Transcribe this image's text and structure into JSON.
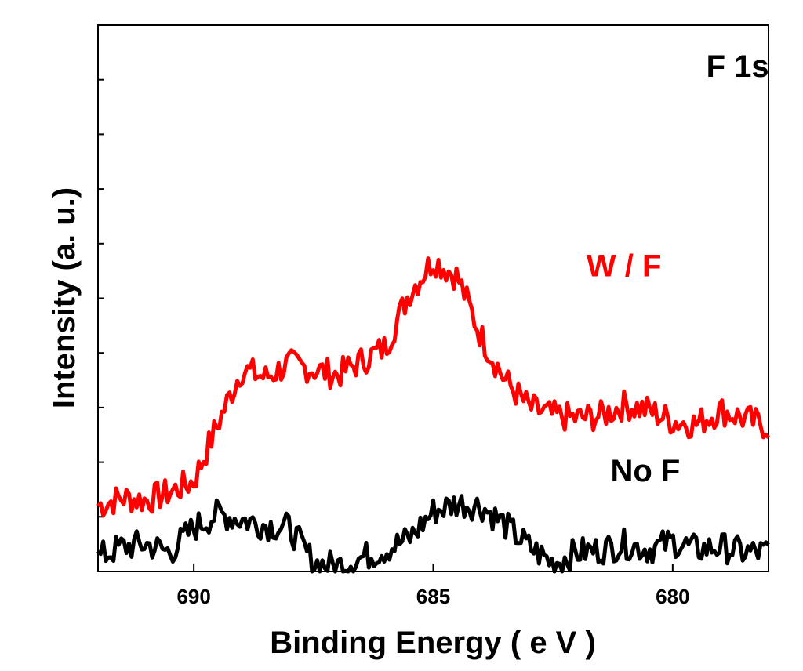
{
  "chart_data": {
    "type": "line",
    "title": "F 1s",
    "xlabel": "Binding Energy ( e V )",
    "ylabel": "Intensity (a. u.)",
    "xlim": [
      692,
      678
    ],
    "ylim": [
      0,
      10
    ],
    "x_reversed": true,
    "x_ticks": [
      690,
      685,
      680
    ],
    "x_tick_labels": [
      "690",
      "685",
      "680"
    ],
    "y_ticks": [
      1,
      2,
      3,
      4,
      5,
      6,
      7,
      8,
      9
    ],
    "y_tick_labels": [],
    "grid": false,
    "series": [
      {
        "name": "W /  F",
        "color": "#ff0000",
        "x": [
          692.0,
          691.5,
          691.0,
          690.5,
          690.0,
          689.5,
          689.0,
          688.5,
          688.0,
          687.5,
          687.0,
          686.5,
          686.0,
          685.5,
          685.0,
          684.5,
          684.0,
          683.5,
          683.0,
          682.5,
          682.0,
          681.5,
          681.0,
          680.5,
          680.0,
          679.5,
          679.0,
          678.5,
          678.0
        ],
        "values": [
          1.2,
          1.35,
          1.3,
          1.45,
          1.65,
          2.7,
          3.7,
          3.55,
          3.8,
          3.7,
          3.6,
          3.85,
          4.1,
          5.1,
          5.7,
          5.4,
          4.3,
          3.5,
          3.0,
          2.85,
          2.8,
          2.85,
          3.05,
          2.95,
          2.75,
          2.7,
          2.95,
          2.8,
          2.65
        ]
      },
      {
        "name": "No F",
        "color": "#000000",
        "x": [
          692.0,
          691.5,
          691.0,
          690.5,
          690.0,
          689.5,
          689.0,
          688.5,
          688.0,
          687.5,
          687.0,
          686.5,
          686.0,
          685.5,
          685.0,
          684.5,
          684.0,
          683.5,
          683.0,
          682.5,
          682.0,
          681.5,
          681.0,
          680.5,
          680.0,
          679.5,
          679.0,
          678.5,
          678.0
        ],
        "values": [
          0.25,
          0.45,
          0.5,
          0.35,
          0.8,
          1.05,
          0.95,
          0.85,
          0.8,
          0.15,
          0.1,
          0.25,
          0.4,
          0.6,
          1.1,
          1.25,
          1.2,
          0.85,
          0.45,
          0.15,
          0.35,
          0.4,
          0.5,
          0.4,
          0.55,
          0.4,
          0.45,
          0.35,
          0.35
        ]
      }
    ],
    "annotations": [
      {
        "text": "F 1s",
        "x": 679.3,
        "y": 9.05
      },
      {
        "text": "W /  F",
        "x": 681.8,
        "y": 5.4
      },
      {
        "text": "No F",
        "x": 681.3,
        "y": 1.65
      }
    ]
  }
}
